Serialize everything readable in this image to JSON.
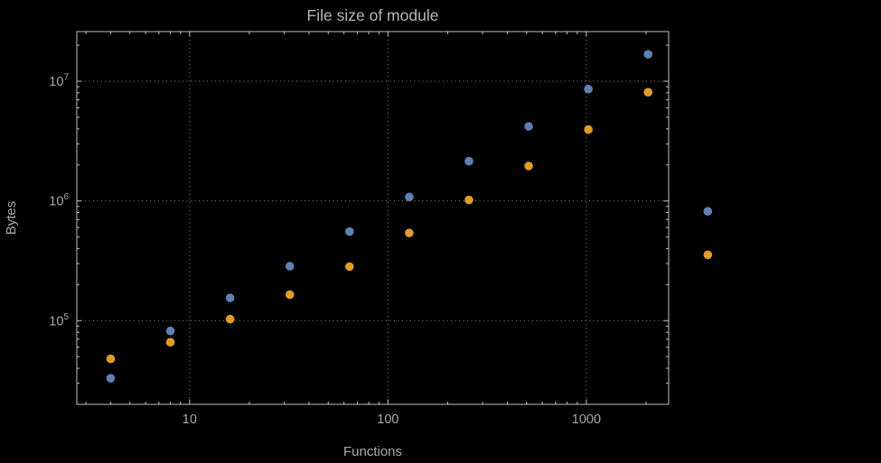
{
  "title": "File size of module",
  "axes": {
    "x_label": "Functions",
    "y_label": "Bytes"
  },
  "colors": {
    "background": "#000000",
    "frame": "#c2c2c2",
    "grid": "#8a8a8a",
    "tick_text": "#a9a9a9",
    "title_text": "#b7b7b7",
    "series_blue": "#5e81b4",
    "series_orange": "#e19c24"
  },
  "chart_data": {
    "type": "scatter",
    "title": "File size of module",
    "xlabel": "Functions",
    "ylabel": "Bytes",
    "xscale": "log",
    "yscale": "log",
    "grid": "dotted",
    "legend": "none",
    "xlim": [
      2.7,
      2600
    ],
    "ylim": [
      20000,
      26000000
    ],
    "x_ticks": [
      10,
      100,
      1000
    ],
    "x_tick_labels": [
      "10",
      "100",
      "1000"
    ],
    "y_ticks": [
      100000,
      1000000,
      10000000
    ],
    "y_tick_labels": [
      "10^5",
      "10^6",
      "10^7"
    ],
    "x": [
      4,
      8,
      16,
      32,
      64,
      128,
      256,
      512,
      1024,
      2048,
      4096
    ],
    "series": [
      {
        "name": "blue",
        "color": "#5e81b4",
        "values": [
          33000,
          82000,
          155000,
          285000,
          555000,
          1080000,
          2150000,
          4200000,
          8600000,
          16800000,
          820000
        ]
      },
      {
        "name": "orange",
        "color": "#e19c24",
        "values": [
          48000,
          66000,
          103000,
          165000,
          283000,
          540000,
          1020000,
          1960000,
          3950000,
          8100000,
          355000
        ]
      }
    ]
  }
}
